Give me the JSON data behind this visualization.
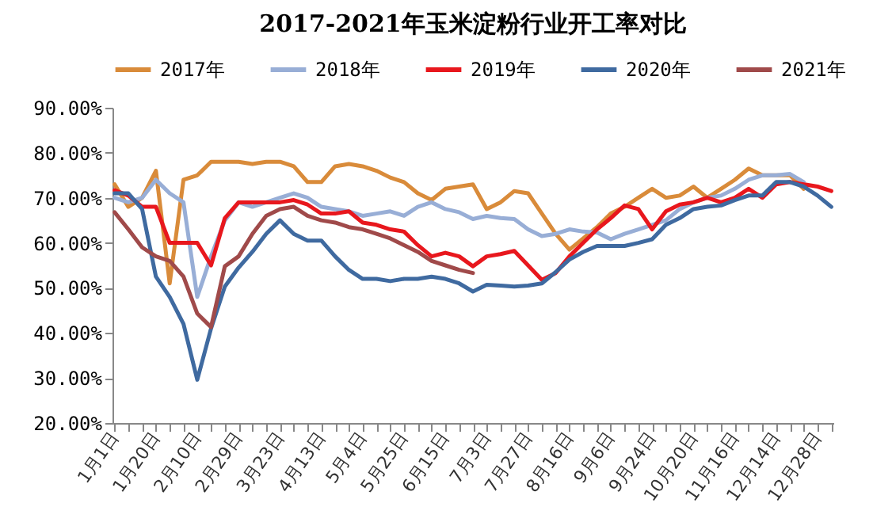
{
  "chart_data": {
    "type": "line",
    "title": "2017-2021年玉米淀粉行业开工率对比",
    "categories": [
      "1月1日",
      null,
      null,
      "1月20日",
      null,
      null,
      "2月10日",
      null,
      null,
      "2月29日",
      null,
      null,
      "3月23日",
      null,
      null,
      "4月13日",
      null,
      null,
      "5月4日",
      null,
      null,
      "5月25日",
      null,
      null,
      "6月15日",
      null,
      null,
      "7月3日",
      null,
      null,
      "7月27日",
      null,
      null,
      "8月16日",
      null,
      null,
      "9月6日",
      null,
      null,
      "9月24日",
      null,
      null,
      "10月20日",
      null,
      null,
      "11月16日",
      null,
      null,
      "12月14日",
      null,
      null,
      "12月28日",
      null
    ],
    "series": [
      {
        "name": "2017年",
        "color": "#d98b3a",
        "values": [
          73,
          68,
          70,
          76,
          51,
          74,
          75,
          78,
          78,
          78,
          77.5,
          78,
          78,
          77,
          73.5,
          73.5,
          77,
          77.5,
          77,
          76,
          74.5,
          73.5,
          71,
          69.5,
          72,
          72.5,
          73,
          67.5,
          69,
          71.5,
          71,
          66.5,
          62,
          58.5,
          61,
          63.5,
          66.5,
          68,
          70,
          72,
          70,
          70.5,
          72.5,
          70,
          72,
          74,
          76.5,
          75,
          75,
          75,
          72,
          null,
          null
        ]
      },
      {
        "name": "2018年",
        "color": "#98aed6",
        "values": [
          70,
          69,
          70,
          74,
          71,
          69,
          48,
          57,
          65,
          69,
          68,
          69,
          70,
          71,
          70,
          68,
          67.5,
          67,
          66,
          66.5,
          67,
          66,
          68,
          69,
          67.5,
          66.8,
          65.3,
          66,
          65.5,
          65.3,
          63,
          61.5,
          62,
          63,
          62.5,
          62.3,
          60.8,
          62,
          63,
          64,
          65,
          67.5,
          69,
          70,
          70.5,
          72,
          74,
          75,
          75,
          75.3,
          73.5,
          null,
          null
        ]
      },
      {
        "name": "2019年",
        "color": "#e8171d",
        "values": [
          71.7,
          70.5,
          68,
          68,
          60,
          60,
          60,
          55,
          65.5,
          69,
          69,
          69,
          69,
          69.5,
          68.5,
          66.5,
          66.5,
          67,
          64.5,
          64,
          63,
          62.5,
          59.5,
          57,
          57.8,
          57,
          54.8,
          57,
          57.5,
          58.2,
          55,
          51.8,
          53.3,
          57,
          60,
          63,
          65.5,
          68.3,
          67.5,
          63,
          67,
          68.5,
          69,
          70,
          69,
          70,
          72,
          70,
          73,
          73.5,
          73,
          72.5,
          71.5
        ]
      },
      {
        "name": "2020年",
        "color": "#3f6aa0",
        "values": [
          71,
          71,
          67.5,
          52.5,
          48,
          42,
          29.6,
          41,
          50.3,
          54.5,
          58,
          62,
          65,
          62,
          60.5,
          60.5,
          57,
          54,
          52,
          52,
          51.5,
          52,
          52,
          52.5,
          52,
          51,
          49.2,
          50.7,
          50.5,
          50.3,
          50.5,
          51,
          53.5,
          56.3,
          58,
          59.3,
          59.3,
          59.3,
          60,
          60.8,
          64,
          65.5,
          67.5,
          68,
          68.3,
          69.5,
          70.5,
          70.5,
          73.5,
          73.5,
          72.5,
          70.5,
          68
        ]
      },
      {
        "name": "2021年",
        "color": "#a04a4a",
        "values": [
          66.8,
          63,
          59,
          57,
          56,
          52.5,
          44.3,
          41.3,
          54.8,
          57,
          62,
          66,
          67.5,
          68,
          66,
          65,
          64.5,
          63.5,
          63,
          62,
          61,
          59.5,
          58,
          56,
          55,
          54,
          53.3,
          null,
          null,
          null,
          null,
          null,
          null,
          null,
          null,
          null,
          null,
          null,
          null,
          null,
          null,
          null,
          null,
          null,
          null,
          null,
          null,
          null,
          null,
          null,
          null,
          null,
          null
        ]
      }
    ],
    "ylim": [
      20,
      90
    ],
    "yticks": [
      {
        "value": 20,
        "label": "20.00%"
      },
      {
        "value": 30,
        "label": "30.00%"
      },
      {
        "value": 40,
        "label": "40.00%"
      },
      {
        "value": 50,
        "label": "50.00%"
      },
      {
        "value": 60,
        "label": "60.00%"
      },
      {
        "value": 70,
        "label": "70.00%"
      },
      {
        "value": 80,
        "label": "80.00%"
      },
      {
        "value": 90,
        "label": "90.00%"
      }
    ],
    "legend": "top",
    "marker": "none",
    "line_style": "solid"
  }
}
